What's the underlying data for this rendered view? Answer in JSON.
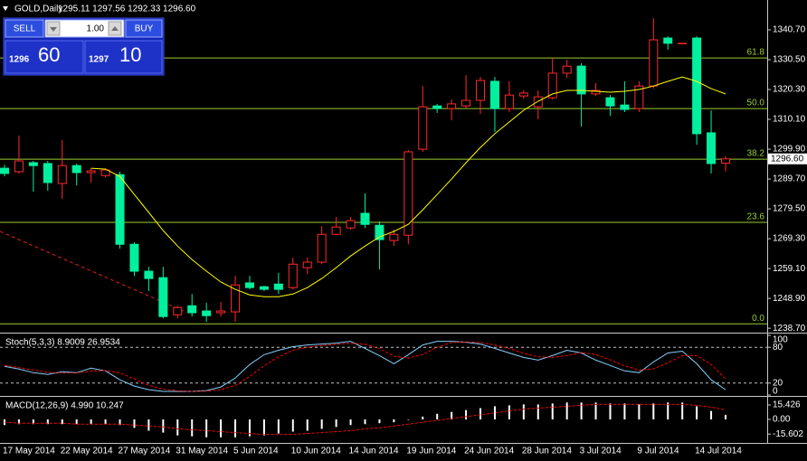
{
  "header": {
    "symbol": "GOLD,Daily",
    "ohlc": "1295.11 1297.56 1292.33 1296.60"
  },
  "trade_panel": {
    "sell": "SELL",
    "buy": "BUY",
    "lot": "1.00",
    "bid_big": "1296",
    "bid_small": "60",
    "ask_big": "1297",
    "ask_small": "10"
  },
  "chart_data": [
    {
      "type": "candlestick",
      "categories": [
        "17 May 2014",
        null,
        null,
        null,
        "22 May 2014",
        null,
        null,
        null,
        "27 May 2014",
        null,
        null,
        null,
        "31 May 2014",
        null,
        null,
        null,
        "5 Jun 2014",
        null,
        null,
        null,
        "10 Jun 2014",
        null,
        null,
        null,
        "14 Jun 2014",
        null,
        null,
        null,
        "19 Jun 2014",
        null,
        null,
        null,
        "24 Jun 2014",
        null,
        null,
        null,
        "28 Jun 2014",
        null,
        null,
        null,
        "3 Jul 2014",
        null,
        null,
        null,
        "9 Jul 2014",
        null,
        null,
        null,
        "14 Jul 2014",
        null,
        null
      ],
      "open": [
        1293.4,
        1292.2,
        1295.3,
        1295.0,
        1288.2,
        1294.3,
        1291.9,
        1290.9,
        1291.2,
        1267.4,
        1258.2,
        1256.0,
        1243.3,
        1246.4,
        1244.6,
        1244.0,
        1244.3,
        1254.2,
        1252.9,
        1253.8,
        1252.6,
        1259.4,
        1261.3,
        1270.8,
        1273.0,
        1278.0,
        1273.9,
        1268.7,
        1270.5,
        1299.9,
        1314.7,
        1313.8,
        1314.7,
        1316.6,
        1323.1,
        1313.8,
        1318.1,
        1314.4,
        1317.5,
        1325.9,
        1328.3,
        1318.8,
        1317.5,
        1315.0,
        1313.8,
        1321.5,
        1337.9,
        1336.1,
        1337.9,
        1305.5,
        1295.11
      ],
      "high": [
        1294.6,
        1304.5,
        1295.9,
        1295.9,
        1303.0,
        1295.0,
        1293.4,
        1293.4,
        1292.2,
        1268.1,
        1259.7,
        1259.7,
        1246.4,
        1250.4,
        1247.4,
        1247.7,
        1256.6,
        1256.6,
        1253.2,
        1257.6,
        1262.8,
        1262.8,
        1273.6,
        1276.7,
        1276.7,
        1284.8,
        1275.2,
        1272.4,
        1299.6,
        1321.5,
        1315.4,
        1316.9,
        1325.2,
        1324.6,
        1324.6,
        1323.1,
        1320.0,
        1320.0,
        1331.1,
        1330.5,
        1329.3,
        1322.5,
        1318.4,
        1323.1,
        1323.1,
        1344.7,
        1338.5,
        1336.1,
        1338.5,
        1313.2,
        1297.56
      ],
      "low": [
        1290.6,
        1291.6,
        1285.4,
        1285.7,
        1282.9,
        1287.5,
        1288.5,
        1290.3,
        1265.9,
        1256.6,
        1251.4,
        1242.1,
        1242.1,
        1242.7,
        1240.9,
        1242.7,
        1240.9,
        1252.0,
        1251.4,
        1250.4,
        1252.0,
        1257.2,
        1260.6,
        1270.5,
        1272.4,
        1273.0,
        1258.8,
        1266.8,
        1267.4,
        1299.0,
        1312.3,
        1309.8,
        1313.8,
        1312.0,
        1305.8,
        1312.6,
        1317.2,
        1310.1,
        1316.9,
        1324.3,
        1307.6,
        1318.1,
        1311.3,
        1312.6,
        1312.6,
        1320.6,
        1333.9,
        1336.1,
        1301.4,
        1291.6,
        1292.33
      ],
      "close": [
        1291.6,
        1295.9,
        1294.3,
        1288.5,
        1294.3,
        1291.9,
        1292.5,
        1292.8,
        1267.4,
        1258.2,
        1255.7,
        1242.7,
        1245.8,
        1244.0,
        1243.0,
        1244.6,
        1253.5,
        1252.6,
        1252.0,
        1252.0,
        1260.6,
        1261.3,
        1270.8,
        1273.3,
        1275.5,
        1274.2,
        1269.0,
        1270.8,
        1299.0,
        1314.4,
        1313.8,
        1315.4,
        1316.6,
        1323.4,
        1313.8,
        1318.4,
        1319.1,
        1317.8,
        1325.9,
        1328.3,
        1318.8,
        1320.0,
        1314.7,
        1313.5,
        1321.5,
        1337.3,
        1336.1,
        1336.1,
        1305.2,
        1295.0,
        1296.6
      ],
      "up_color": "#ff2a2a",
      "down_color": "#00f0a0",
      "series": [
        {
          "color": "#ffff00",
          "values": [
            null,
            null,
            null,
            null,
            null,
            null,
            1293.4,
            1293.1,
            1290.6,
            1284.4,
            1278.3,
            1272.1,
            1266.8,
            1262.2,
            1258.2,
            1254.5,
            1252.0,
            1250.1,
            1249.5,
            1249.5,
            1250.4,
            1252.6,
            1255.7,
            1259.4,
            1263.4,
            1266.8,
            1269.9,
            1271.8,
            1274.2,
            1279.2,
            1284.4,
            1289.7,
            1295.3,
            1300.5,
            1305.2,
            1309.2,
            1313.2,
            1316.3,
            1318.8,
            1320.0,
            1320.0,
            1319.7,
            1319.4,
            1319.7,
            1320.3,
            1321.5,
            1323.1,
            1324.6,
            1323.1,
            1320.6,
            1318.8
          ]
        }
      ],
      "fib_color": "#9acd32",
      "fib_levels": [
        {
          "label": "61.8",
          "value": 1331.1
        },
        {
          "label": "50.0",
          "value": 1313.8
        },
        {
          "label": "38.2",
          "value": 1296.5
        },
        {
          "label": "23.6",
          "value": 1274.9
        },
        {
          "label": "0.0",
          "value": 1240.2
        }
      ],
      "last_price": {
        "value": 1296.6,
        "label": "1296.60"
      },
      "ylim": [
        1237.2,
        1350.9
      ],
      "yticks": [
        {
          "value": 1340.7,
          "label": "1340.70"
        },
        {
          "value": 1330.5,
          "label": "1330.50"
        },
        {
          "value": 1320.3,
          "label": "1320.30"
        },
        {
          "value": 1310.1,
          "label": "1310.10"
        },
        {
          "value": 1299.9,
          "label": "1299.90"
        },
        {
          "value": 1289.7,
          "label": "1289.70"
        },
        {
          "value": 1279.5,
          "label": "1279.50"
        },
        {
          "value": 1269.3,
          "label": "1269.30"
        },
        {
          "value": 1259.1,
          "label": "1259.10"
        },
        {
          "value": 1248.9,
          "label": "1248.90"
        },
        {
          "value": 1238.7,
          "label": "1238.70"
        }
      ]
    },
    {
      "type": "line",
      "title": "Stoch(5,3,3) 8.9009 26.9534",
      "ylim": [
        0,
        100
      ],
      "yticks": [
        0,
        20,
        80,
        100
      ],
      "levels": [
        20,
        80
      ],
      "level_color": "#c0c0c0",
      "series": [
        {
          "color": "#87cefa",
          "values": [
            48,
            43.5,
            37.5,
            34.5,
            39,
            37.5,
            45,
            40.5,
            25.5,
            15,
            9,
            6,
            6,
            6,
            7.5,
            13.5,
            28.5,
            51,
            67.5,
            75,
            81,
            84,
            85.5,
            87,
            90,
            78,
            66,
            52.5,
            67.5,
            84,
            90,
            90,
            88.5,
            85.5,
            78,
            70.5,
            63,
            58.5,
            66,
            75,
            70.5,
            58.5,
            49.5,
            40.5,
            37.5,
            55.5,
            70.5,
            73.5,
            52.5,
            25.5,
            8.9
          ]
        },
        {
          "color": "#ff0000",
          "dashed": true,
          "values": [
            50,
            46,
            42,
            38,
            37,
            37,
            40,
            41,
            37,
            27,
            16,
            10,
            7,
            6,
            6.5,
            9,
            16,
            31,
            49,
            64,
            75,
            80,
            83,
            85,
            87,
            85,
            78,
            65,
            62,
            68,
            80,
            88,
            89,
            88,
            84,
            78,
            70,
            64,
            63,
            66,
            71,
            68,
            59,
            49,
            42,
            44,
            54,
            66,
            66,
            51,
            27.0
          ]
        }
      ]
    },
    {
      "type": "macd",
      "title": "MACD(12,26,9) 4.990 10.247",
      "ylim": [
        -25,
        23.1
      ],
      "yticks": [
        15.426,
        {
          "value": 0,
          "label": "0.00"
        },
        -15.602
      ],
      "color": "#ffffff",
      "values": [
        -6,
        -5,
        -5,
        -5,
        -5,
        -5,
        -5,
        -5,
        -6,
        -9,
        -12,
        -14,
        -17,
        -18,
        -19,
        -19,
        -19,
        -18,
        -17,
        -15,
        -13,
        -12,
        -10,
        -8,
        -6,
        -5,
        -4,
        -3,
        0,
        3,
        6,
        8,
        10,
        12,
        14,
        15,
        16,
        16,
        17,
        18,
        18,
        18,
        17,
        17,
        16,
        17,
        18,
        18,
        14,
        9,
        4.99
      ],
      "series": [
        {
          "color": "#ff0000",
          "dashed": true,
          "values": [
            -3,
            -4,
            -4,
            -4,
            -4,
            -5,
            -5,
            -5,
            -5,
            -6,
            -7,
            -8,
            -10,
            -11,
            -12,
            -13,
            -14,
            -15,
            -16,
            -16,
            -16,
            -15,
            -14,
            -13,
            -12,
            -10,
            -9,
            -7,
            -5,
            -3,
            -1,
            1,
            3,
            5,
            7,
            9,
            11,
            12,
            13,
            14,
            15,
            16,
            16,
            16,
            16,
            16,
            16,
            16,
            15,
            13,
            10.247
          ]
        }
      ]
    }
  ]
}
